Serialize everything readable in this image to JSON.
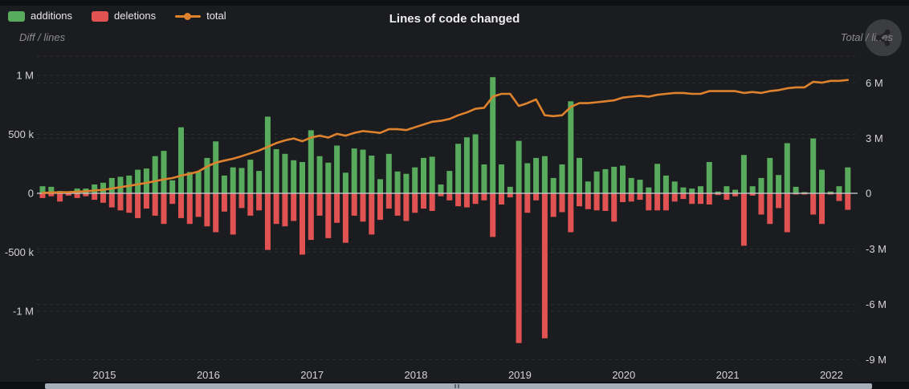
{
  "chart_data": {
    "type": "combo-bar-line",
    "title": "Lines of code changed",
    "x_unit": "month",
    "start_month": "2014-06",
    "end_month": "2022-03",
    "x_axis": {
      "tick_labels": [
        "2015",
        "2016",
        "2017",
        "2018",
        "2019",
        "2020",
        "2021",
        "2022"
      ]
    },
    "left_axis": {
      "caption": "Diff / lines",
      "tick_labels": [
        "1 M",
        "500 k",
        "0",
        "-500 k",
        "-1 M"
      ],
      "range": [
        -1450000,
        1160000
      ]
    },
    "right_axis": {
      "caption": "Total / lines",
      "tick_labels": [
        "6 M",
        "3 M",
        "0",
        "-3 M",
        "-6 M",
        "-9 M"
      ],
      "range": [
        -9200000,
        7400000
      ]
    },
    "grid": "faint dashed horizontal",
    "legend_position": "top-left",
    "series": [
      {
        "name": "additions",
        "type": "bar",
        "axis": "left",
        "direction": "up",
        "color": "#58ab5c",
        "unit": "thousand lines",
        "values": [
          60,
          55,
          20,
          15,
          40,
          40,
          75,
          90,
          130,
          140,
          150,
          200,
          210,
          315,
          360,
          110,
          560,
          180,
          185,
          300,
          440,
          150,
          220,
          215,
          285,
          190,
          650,
          375,
          335,
          280,
          265,
          535,
          315,
          260,
          405,
          175,
          380,
          370,
          320,
          120,
          335,
          185,
          165,
          220,
          300,
          310,
          75,
          190,
          420,
          475,
          500,
          245,
          985,
          245,
          55,
          445,
          255,
          300,
          315,
          130,
          245,
          780,
          300,
          100,
          185,
          205,
          225,
          235,
          130,
          115,
          50,
          250,
          150,
          100,
          50,
          40,
          60,
          265,
          15,
          60,
          30,
          325,
          60,
          130,
          300,
          155,
          425,
          55,
          10,
          465,
          200,
          15,
          60,
          220
        ]
      },
      {
        "name": "deletions",
        "type": "bar",
        "axis": "left",
        "direction": "down",
        "color": "#e15352",
        "unit": "thousand lines",
        "values": [
          40,
          25,
          70,
          20,
          40,
          25,
          55,
          80,
          120,
          145,
          165,
          210,
          130,
          190,
          260,
          90,
          210,
          260,
          200,
          280,
          330,
          155,
          350,
          125,
          190,
          145,
          480,
          260,
          280,
          235,
          520,
          395,
          190,
          380,
          250,
          420,
          190,
          240,
          350,
          225,
          130,
          190,
          235,
          165,
          130,
          150,
          25,
          60,
          110,
          120,
          90,
          60,
          370,
          95,
          35,
          1270,
          165,
          60,
          1230,
          200,
          160,
          330,
          110,
          135,
          145,
          150,
          240,
          75,
          70,
          55,
          145,
          145,
          145,
          70,
          48,
          90,
          90,
          95,
          15,
          55,
          25,
          445,
          20,
          180,
          260,
          125,
          330,
          10,
          10,
          180,
          260,
          10,
          65,
          140
        ]
      },
      {
        "name": "total",
        "type": "line",
        "axis": "right",
        "color": "#de822e",
        "unit": "million lines",
        "values": [
          0.02,
          0.04,
          0.05,
          0.06,
          0.08,
          0.11,
          0.15,
          0.19,
          0.26,
          0.33,
          0.4,
          0.48,
          0.56,
          0.65,
          0.75,
          0.82,
          0.95,
          1.05,
          1.17,
          1.44,
          1.65,
          1.76,
          1.86,
          2.0,
          2.15,
          2.3,
          2.5,
          2.7,
          2.85,
          2.95,
          2.8,
          3.0,
          3.1,
          3.0,
          3.2,
          3.1,
          3.25,
          3.35,
          3.3,
          3.25,
          3.45,
          3.45,
          3.4,
          3.55,
          3.7,
          3.85,
          3.9,
          4.0,
          4.2,
          4.35,
          4.55,
          4.6,
          5.2,
          5.35,
          5.35,
          4.7,
          4.85,
          5.05,
          4.2,
          4.15,
          4.2,
          4.65,
          4.85,
          4.85,
          4.9,
          4.95,
          5.0,
          5.15,
          5.2,
          5.25,
          5.2,
          5.3,
          5.35,
          5.4,
          5.4,
          5.35,
          5.35,
          5.5,
          5.5,
          5.5,
          5.5,
          5.4,
          5.45,
          5.4,
          5.5,
          5.55,
          5.65,
          5.7,
          5.7,
          6.0,
          5.95,
          6.05,
          6.05,
          6.1
        ]
      }
    ],
    "zero_line_color": "#c3c8cd",
    "background_color": "#1b1c1f",
    "scrollbar_color": "#a6afb8"
  }
}
